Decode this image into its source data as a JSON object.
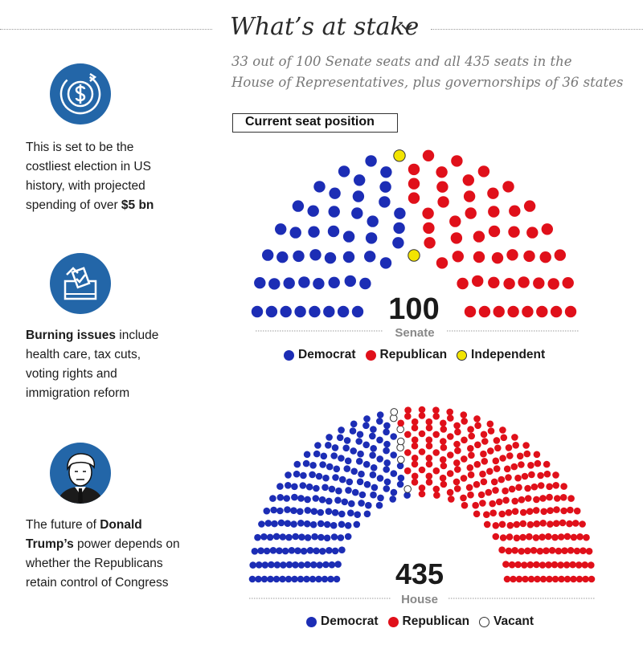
{
  "header": {
    "title": "What’s at stake",
    "subtitle_line1": "33 out of 100 Senate seats and all 435 seats in the",
    "subtitle_line2": "House of Representatives, plus governorships of 36 states",
    "seat_position_label": "Current seat position"
  },
  "panels": [
    {
      "icon": "dollar-coin-icon",
      "line1": "This is set to be the",
      "line2": "costliest election in US",
      "line3": "history, with projected",
      "line4_pre": "spending of over ",
      "line4_bold": "$5 bn"
    },
    {
      "icon": "ballot-box-icon",
      "line1_bold": "Burning issues",
      "line1_rest": " include",
      "line2": "health care, tax cuts,",
      "line3": "voting rights and",
      "line4": "immigration reform"
    },
    {
      "icon": "donald-trump-portrait-icon",
      "line1_pre": "The future of ",
      "line1_bold": "Donald",
      "line2_bold": "Trump’s",
      "line2_rest": " power depends on",
      "line3": "whether the Republicans",
      "line4": "retain control of Congress"
    }
  ],
  "colors": {
    "democrat": "#1c2db5",
    "republican": "#e0101a",
    "independent": "#f2e400",
    "vacant": "#ffffff",
    "icon_circle": "#2366a8"
  },
  "chart_data": [
    {
      "type": "parliament",
      "total_label": "100",
      "chamber_label": "Senate",
      "series": [
        {
          "name": "Democrat",
          "value": 47
        },
        {
          "name": "Independent",
          "value": 2
        },
        {
          "name": "Republican",
          "value": 51
        }
      ],
      "legend": [
        "Democrat",
        "Republican",
        "Independent"
      ]
    },
    {
      "type": "parliament",
      "total_label": "435",
      "chamber_label": "House",
      "series": [
        {
          "name": "Democrat",
          "value": 193
        },
        {
          "name": "Vacant",
          "value": 7
        },
        {
          "name": "Republican",
          "value": 235
        }
      ],
      "legend": [
        "Democrat",
        "Republican",
        "Vacant"
      ]
    }
  ]
}
